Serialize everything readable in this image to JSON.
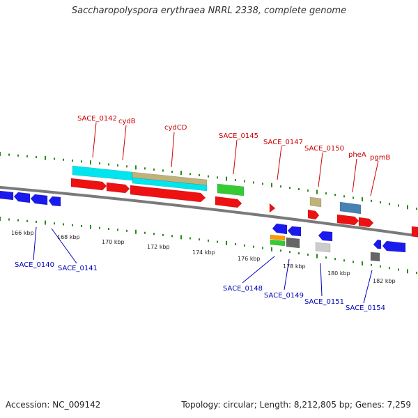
{
  "title": "Saccharopolyspora erythraea NRRL 2338, complete genome",
  "footer": {
    "accession": "Accession: NC_009142",
    "summary": "Topology: circular; Length: 8,212,805 bp; Genes: 7,259"
  },
  "colors": {
    "backbone": "#7a7a7a",
    "forward_label": "#cc0000",
    "reverse_label": "#0000bb",
    "tick": "#2a8a1a",
    "forward_gene": "#ee1111",
    "reverse_gene": "#1a1aee",
    "cyan_feature": "#00e5ee",
    "tan_feature": "#bfb27a",
    "green_feature": "#33cc33",
    "steelblue_feature": "#4682b4",
    "orange_feature": "#ff9900",
    "gray_feature": "#666666",
    "lightgray_feature": "#cccccc"
  },
  "scale_labels": [
    "166 kbp",
    "168 kbp",
    "170 kbp",
    "172 kbp",
    "174 kbp",
    "176 kbp",
    "178 kbp",
    "180 kbp",
    "182 kbp"
  ],
  "forward_labels": [
    "SACE_0142",
    "cydB",
    "cydCD",
    "SACE_0145",
    "SACE_0147",
    "SACE_0150",
    "pheA",
    "pgmB"
  ],
  "reverse_labels": [
    "SACE_0140",
    "SACE_0141",
    "SACE_0148",
    "SACE_0149",
    "SACE_0151",
    "SACE_0154"
  ]
}
